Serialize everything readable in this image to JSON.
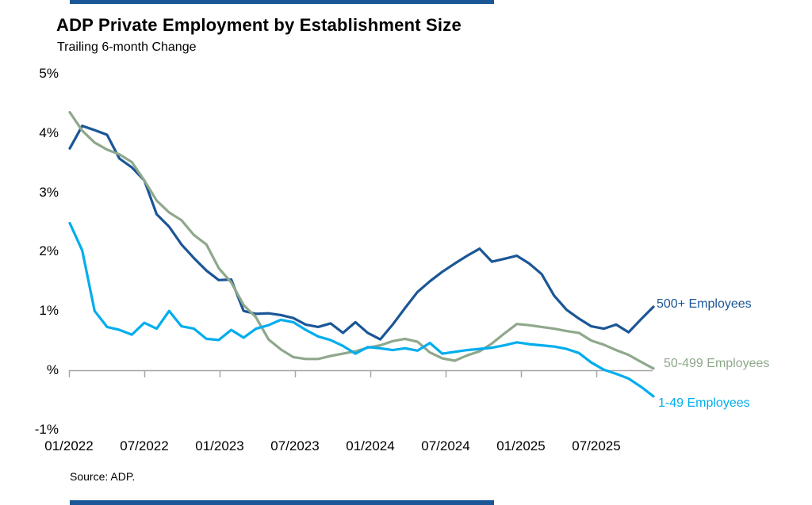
{
  "chart": {
    "title": "ADP Private Employment by Establishment Size",
    "subtitle": "Trailing 6-month Change",
    "source": "Source: ADP.",
    "y_axis": {
      "tick_labels": [
        "5%",
        "4%",
        "3%",
        "2%",
        "1%",
        "%",
        "-1%"
      ],
      "tick_values": [
        5,
        4,
        3,
        2,
        1,
        0,
        -1
      ]
    },
    "x_axis": {
      "tick_labels": [
        "01/2022",
        "07/2022",
        "01/2023",
        "07/2023",
        "01/2024",
        "07/2024",
        "01/2025",
        "07/2025"
      ]
    },
    "legend": {
      "large_label": "500+ Employees",
      "medium_label": "50-499 Employees",
      "small_label": "1-49 Employees"
    },
    "colors": {
      "large": "#1B5696",
      "medium": "#8FA88C",
      "small": "#00ADEE",
      "axis": "#A6A6A6",
      "accent_bar": "#1B5696",
      "text": "#000000"
    }
  },
  "chart_data": {
    "type": "line",
    "title": "ADP Private Employment by Establishment Size",
    "subtitle": "Trailing 6-month Change",
    "unit": "percent (trailing 6-month change)",
    "x_start": "01/2022",
    "x_end": "12/2025",
    "x_frequency": "monthly",
    "x_tick_labels": [
      "01/2022",
      "07/2022",
      "01/2023",
      "07/2023",
      "01/2024",
      "07/2024",
      "01/2025",
      "07/2025"
    ],
    "ylim": [
      -1,
      5
    ],
    "y_tick_labels": [
      "5%",
      "4%",
      "3%",
      "2%",
      "1%",
      "%",
      "-1%"
    ],
    "grid": "zero-line-only",
    "legend_position": "right-end-of-lines",
    "series": [
      {
        "name": "500+ Employees",
        "color": "#1B5696",
        "values": [
          3.74,
          4.12,
          4.05,
          3.97,
          3.57,
          3.42,
          3.2,
          2.63,
          2.42,
          2.12,
          1.89,
          1.68,
          1.52,
          1.53,
          1.0,
          0.95,
          0.96,
          0.93,
          0.88,
          0.77,
          0.73,
          0.79,
          0.63,
          0.81,
          0.63,
          0.52,
          0.77,
          1.05,
          1.32,
          1.5,
          1.66,
          1.8,
          1.93,
          2.05,
          1.83,
          1.88,
          1.93,
          1.8,
          1.62,
          1.26,
          1.02,
          0.87,
          0.74,
          0.7,
          0.77,
          0.64,
          0.86,
          1.07
        ]
      },
      {
        "name": "50-499 Employees",
        "color": "#8FA88C",
        "values": [
          4.35,
          4.04,
          3.84,
          3.72,
          3.64,
          3.51,
          3.2,
          2.86,
          2.66,
          2.53,
          2.28,
          2.12,
          1.72,
          1.48,
          1.1,
          0.89,
          0.52,
          0.35,
          0.22,
          0.19,
          0.19,
          0.24,
          0.28,
          0.32,
          0.38,
          0.42,
          0.49,
          0.53,
          0.48,
          0.3,
          0.2,
          0.16,
          0.25,
          0.32,
          0.45,
          0.62,
          0.78,
          0.76,
          0.73,
          0.7,
          0.66,
          0.63,
          0.5,
          0.43,
          0.34,
          0.26,
          0.14,
          0.03
        ]
      },
      {
        "name": "1-49 Employees",
        "color": "#00ADEE",
        "values": [
          2.48,
          2.02,
          1.0,
          0.73,
          0.68,
          0.6,
          0.8,
          0.7,
          1.0,
          0.74,
          0.7,
          0.53,
          0.51,
          0.68,
          0.55,
          0.7,
          0.76,
          0.85,
          0.81,
          0.68,
          0.57,
          0.51,
          0.41,
          0.28,
          0.39,
          0.37,
          0.34,
          0.37,
          0.33,
          0.46,
          0.28,
          0.31,
          0.34,
          0.36,
          0.38,
          0.42,
          0.47,
          0.44,
          0.42,
          0.4,
          0.36,
          0.29,
          0.13,
          0.01,
          -0.06,
          -0.14,
          -0.28,
          -0.44
        ]
      }
    ]
  }
}
